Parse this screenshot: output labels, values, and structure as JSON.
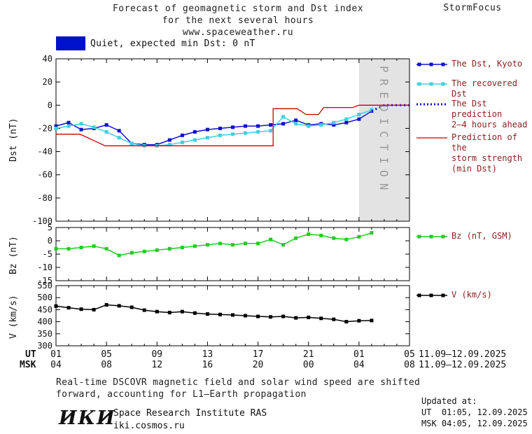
{
  "header": {
    "title_line1": "Forecast of geomagnetic storm and Dst index",
    "title_line2": "for the next several hours",
    "title_line3": "www.spaceweather.ru",
    "brand": "StormFocus"
  },
  "status": {
    "text": "Quiet, expected min Dst: 0 nT",
    "box_color": "#0011cc"
  },
  "legend": {
    "dst_kyoto": "The Dst, Kyoto",
    "recovered_dst": "The recovered Dst",
    "dst_prediction_line1": "The Dst prediction",
    "dst_prediction_line2": "2–4 hours ahead",
    "storm_line1": "Prediction of the",
    "storm_line2": "storm strength",
    "storm_line3": "(min Dst)",
    "bz": "Bz (nT, GSM)",
    "v": "V (km/s)"
  },
  "time_axis": {
    "ut_label": "UT",
    "msk_label": "MSK",
    "ut_ticks": [
      "01",
      "05",
      "09",
      "13",
      "17",
      "21",
      "01",
      "05"
    ],
    "msk_ticks": [
      "04",
      "08",
      "12",
      "16",
      "20",
      "00",
      "04",
      "08"
    ],
    "ut_date": "11.09–12.09.2025",
    "msk_date": "11.09–12.09.2025"
  },
  "footer": {
    "note_line1": "Real-time DSCOVR magnetic field and solar wind speed are shifted",
    "note_line2": "forward, accounting for L1–Earth propagation",
    "logo": "ИКИ",
    "institute": "Space Research Institute RAS",
    "website": "iki.cosmos.ru",
    "updated_label": "Updated at:",
    "updated_ut": "UT  01:05, 12.09.2025",
    "updated_msk": "MSK 04:05, 12.09.2025"
  },
  "chart_data": [
    {
      "type": "line",
      "name": "dst",
      "title": "Dst index forecast",
      "ylabel": "Dst (nT)",
      "ylim": [
        -100,
        40
      ],
      "yticks": [
        40,
        20,
        0,
        -20,
        -40,
        -60,
        -80,
        -100
      ],
      "xlim": [
        1,
        29
      ],
      "xtick_hours": [
        1,
        5,
        9,
        13,
        17,
        21,
        25,
        29
      ],
      "prediction_zone": {
        "from": 25,
        "to": 29,
        "label": "PREDICTION",
        "color": "#e3e3e3",
        "label_color": "#9a9a9a"
      },
      "series": [
        {
          "name": "The Dst, Kyoto",
          "color": "#1111cc",
          "marker": true,
          "x0": 1,
          "dx": 1,
          "y": [
            -18,
            -15,
            -21,
            -20,
            -17,
            -22,
            -33,
            -34,
            -34,
            -30,
            -26,
            -23,
            -21,
            -20,
            -19,
            -18,
            -18,
            -17,
            -16,
            -13,
            -17,
            -16,
            -17,
            -15,
            -12,
            -5
          ]
        },
        {
          "name": "The recovered Dst",
          "color": "#3fd0e0",
          "marker": true,
          "x0": 1,
          "dx": 1,
          "y": [
            -20,
            -18,
            -16,
            -19,
            -23,
            -28,
            -33,
            -35,
            -35,
            -34,
            -32,
            -30,
            -28,
            -26,
            -25,
            -24,
            -23,
            -22,
            -10,
            -16,
            -18,
            -17,
            -15,
            -12,
            -8,
            -4
          ]
        },
        {
          "name": "The Dst prediction 2–4 hours ahead",
          "color": "#1111cc",
          "style": "dotted",
          "width": 3,
          "pts": [
            [
              26,
              -5
            ],
            [
              27,
              0
            ],
            [
              29,
              0
            ]
          ]
        },
        {
          "name": "Prediction of the storm strength (min Dst)",
          "color": "#cc0000",
          "width": 1.3,
          "pts": [
            [
              1,
              -25
            ],
            [
              2.9,
              -25
            ],
            [
              4.9,
              -35
            ],
            [
              18.2,
              -35
            ],
            [
              18.2,
              -3
            ],
            [
              20.1,
              -3
            ],
            [
              20.8,
              -8
            ],
            [
              21.8,
              -8
            ],
            [
              22.2,
              -2
            ],
            [
              24.5,
              -2
            ],
            [
              25,
              0
            ],
            [
              29,
              0
            ]
          ]
        }
      ]
    },
    {
      "type": "line",
      "name": "bz",
      "ylabel": "Bz (nT)",
      "ylim": [
        -15,
        5
      ],
      "yticks": [
        5,
        0,
        -5,
        -10,
        -15
      ],
      "xlim": [
        1,
        29
      ],
      "xtick_hours": [
        1,
        5,
        9,
        13,
        17,
        21,
        25,
        29
      ],
      "series": [
        {
          "name": "Bz (nT, GSM)",
          "color": "#22cc22",
          "marker": true,
          "x0": 1,
          "dx": 1,
          "y": [
            -3,
            -3,
            -2.5,
            -2,
            -3,
            -5.5,
            -4.5,
            -4,
            -3.5,
            -3,
            -2.5,
            -2,
            -1.5,
            -1,
            -1.5,
            -1,
            -1,
            0.5,
            -1.5,
            1,
            2.5,
            2,
            1,
            0.5,
            1.5,
            3
          ]
        }
      ]
    },
    {
      "type": "line",
      "name": "v",
      "ylabel": "V (km/s)",
      "ylim": [
        300,
        550
      ],
      "yticks": [
        550,
        500,
        450,
        400,
        350,
        300
      ],
      "xlim": [
        1,
        29
      ],
      "xtick_hours": [
        1,
        5,
        9,
        13,
        17,
        21,
        25,
        29
      ],
      "series": [
        {
          "name": "V (km/s)",
          "color": "#000000",
          "marker": true,
          "x0": 1,
          "dx": 1,
          "y": [
            465,
            458,
            452,
            450,
            470,
            466,
            460,
            448,
            442,
            438,
            442,
            436,
            432,
            430,
            428,
            425,
            422,
            420,
            422,
            416,
            418,
            414,
            410,
            400,
            404,
            405
          ]
        }
      ]
    }
  ]
}
